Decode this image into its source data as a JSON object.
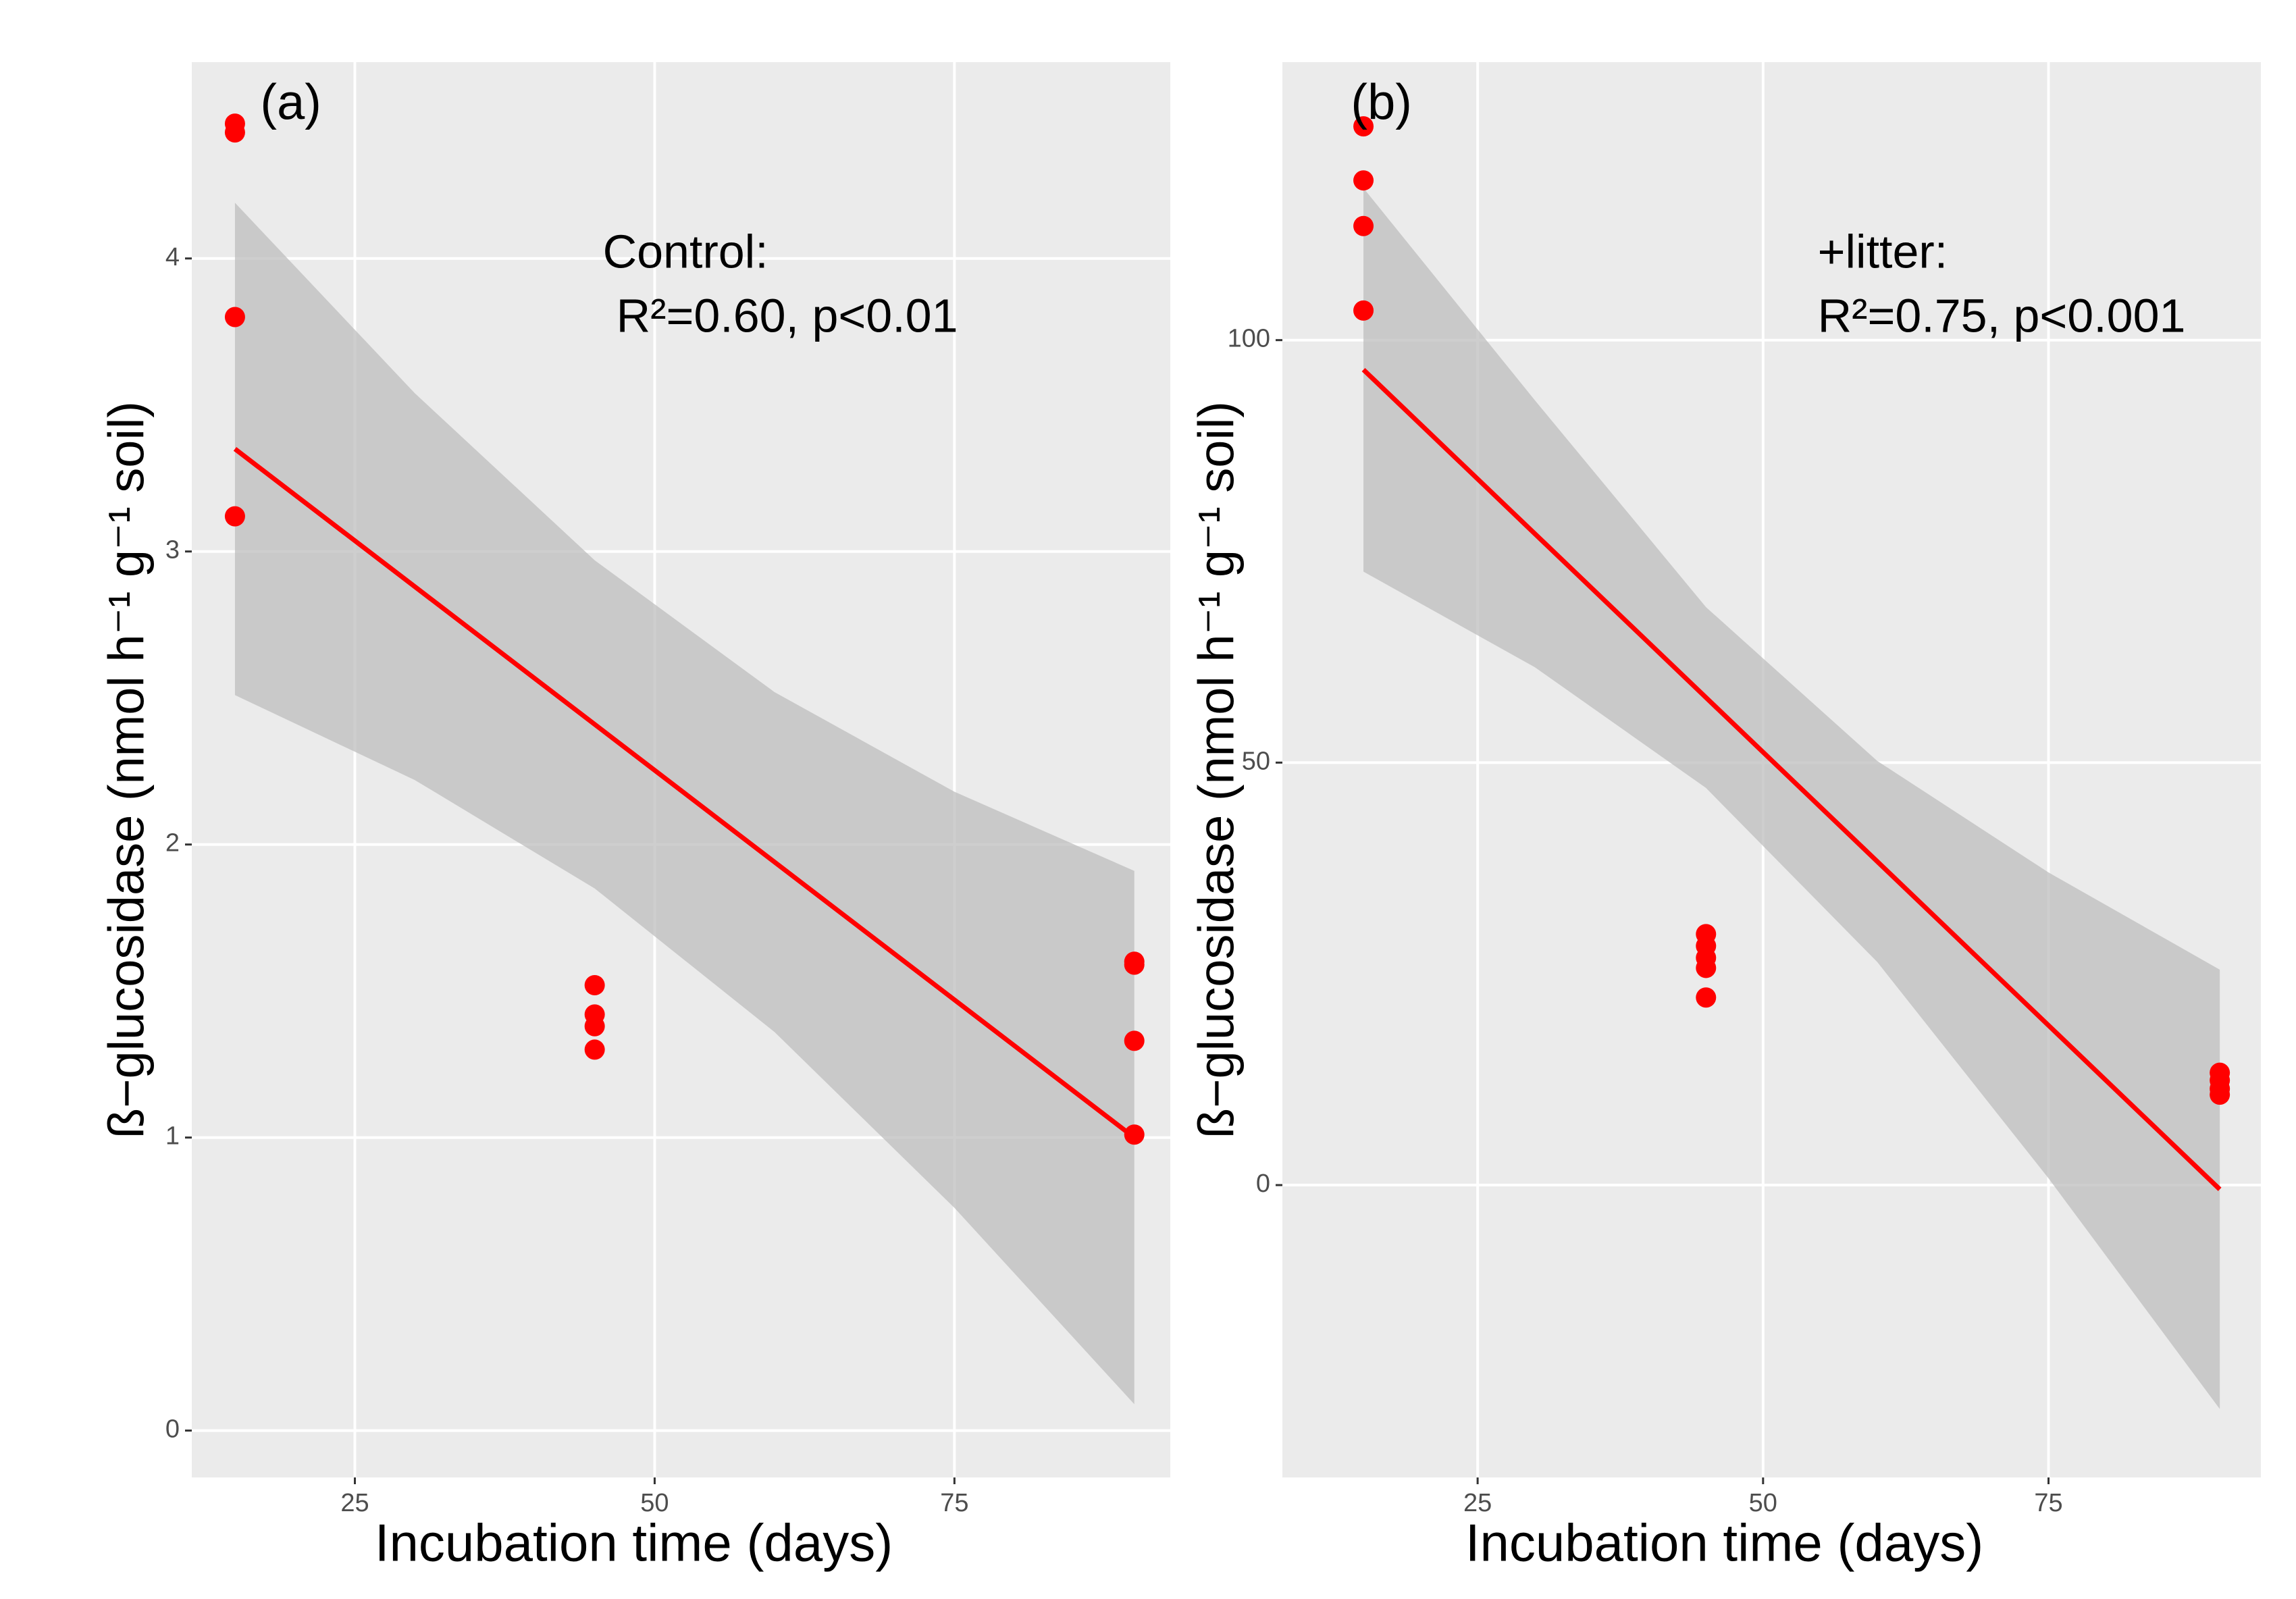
{
  "chart_data": [
    {
      "type": "scatter",
      "panel_label": "(a)",
      "annotation": [
        "Control:",
        "R²=0.60, p<0.01"
      ],
      "xlabel": "Incubation time (days)",
      "ylabel": "ß−glucosidase (nmol h⁻¹ g⁻¹ soil)",
      "x": [
        15,
        15,
        15,
        15,
        45,
        45,
        45,
        45,
        90,
        90,
        90,
        90
      ],
      "values": [
        4.46,
        4.43,
        3.8,
        3.12,
        1.52,
        1.42,
        1.38,
        1.3,
        1.6,
        1.59,
        1.33,
        1.01
      ],
      "color": "#ff0000",
      "fit": {
        "x": [
          15,
          90
        ],
        "y": [
          3.35,
          1.0
        ],
        "color": "#ff0000"
      },
      "band": {
        "x": [
          15,
          30,
          45,
          60,
          75,
          90
        ],
        "upper": [
          4.19,
          3.54,
          2.97,
          2.52,
          2.18,
          1.91
        ],
        "lower": [
          2.51,
          2.22,
          1.85,
          1.36,
          0.76,
          0.09
        ],
        "color": "#bdbdbd"
      },
      "xlim": [
        11.4,
        93
      ],
      "ylim": [
        -0.16,
        4.67
      ],
      "xticks": [
        25,
        50,
        75
      ],
      "yticks": [
        0,
        1,
        2,
        3,
        4
      ],
      "grid": true
    },
    {
      "type": "scatter",
      "panel_label": "(b)",
      "annotation": [
        "+litter:",
        "R²=0.75, p<0.001"
      ],
      "xlabel": "Incubation time (days)",
      "ylabel": "ß−glucosidase (nmol h⁻¹ g⁻¹ soil)",
      "x": [
        15,
        15,
        15,
        15,
        45,
        45,
        45,
        45,
        45,
        90,
        90,
        90,
        90
      ],
      "values": [
        125.3,
        118.9,
        113.5,
        103.5,
        29.7,
        28.3,
        26.9,
        25.7,
        22.2,
        13.3,
        12.4,
        11.4,
        10.7
      ],
      "color": "#ff0000",
      "fit": {
        "x": [
          15,
          90
        ],
        "y": [
          96.5,
          -0.5
        ],
        "color": "#ff0000"
      },
      "band": {
        "x": [
          15,
          30,
          45,
          60,
          75,
          90
        ],
        "upper": [
          118,
          92.9,
          68.4,
          50.2,
          37,
          25.5
        ],
        "lower": [
          72.6,
          61.3,
          47,
          26.4,
          0.8,
          -26.5
        ],
        "color": "#bdbdbd"
      },
      "xlim": [
        7.9,
        93.6
      ],
      "ylim": [
        -34.6,
        132.9
      ],
      "xticks": [
        25,
        50,
        75
      ],
      "yticks": [
        0,
        50,
        100
      ],
      "grid": true
    }
  ]
}
